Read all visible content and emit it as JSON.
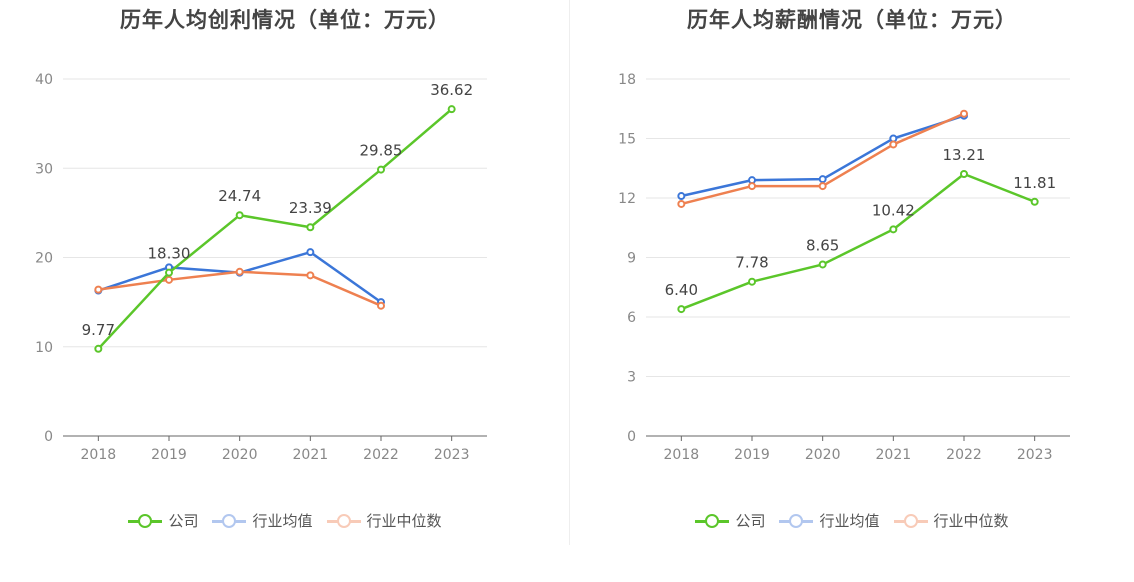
{
  "chart_data": [
    {
      "type": "line",
      "title": "历年人均创利情况（单位：万元）",
      "categories": [
        "2018",
        "2019",
        "2020",
        "2021",
        "2022",
        "2023"
      ],
      "ylim": [
        0,
        40
      ],
      "yticks": [
        0,
        10,
        20,
        30,
        40
      ],
      "grid": true,
      "legend_position": "bottom",
      "series": [
        {
          "name": "公司",
          "color": "#5bc62a",
          "values": [
            9.77,
            18.3,
            24.74,
            23.39,
            29.85,
            36.62
          ],
          "labels": [
            "9.77",
            "18.30",
            "24.74",
            "23.39",
            "29.85",
            "36.62"
          ]
        },
        {
          "name": "行业均值",
          "color": "#3b76d8",
          "values": [
            16.3,
            18.9,
            18.3,
            20.6,
            15.0,
            null
          ]
        },
        {
          "name": "行业中位数",
          "color": "#ee8050",
          "values": [
            16.4,
            17.5,
            18.4,
            18.0,
            14.6,
            null
          ]
        }
      ]
    },
    {
      "type": "line",
      "title": "历年人均薪酬情况（单位：万元）",
      "categories": [
        "2018",
        "2019",
        "2020",
        "2021",
        "2022",
        "2023"
      ],
      "ylim": [
        0,
        18
      ],
      "yticks": [
        0,
        3,
        6,
        9,
        12,
        15,
        18
      ],
      "grid": true,
      "legend_position": "bottom",
      "series": [
        {
          "name": "公司",
          "color": "#5bc62a",
          "values": [
            6.4,
            7.78,
            8.65,
            10.42,
            13.21,
            11.81
          ],
          "labels": [
            "6.40",
            "7.78",
            "8.65",
            "10.42",
            "13.21",
            "11.81"
          ]
        },
        {
          "name": "行业均值",
          "color": "#3b76d8",
          "values": [
            12.1,
            12.9,
            12.95,
            15.0,
            16.15,
            null
          ]
        },
        {
          "name": "行业中位数",
          "color": "#ee8050",
          "values": [
            11.7,
            12.6,
            12.6,
            14.7,
            16.25,
            null
          ]
        }
      ]
    }
  ],
  "legend": [
    {
      "label": "公司",
      "color": "#5bc62a",
      "dim": false
    },
    {
      "label": "行业均值",
      "color": "#7fa3e6",
      "dim": true
    },
    {
      "label": "行业中位数",
      "color": "#f5a98a",
      "dim": true
    }
  ]
}
